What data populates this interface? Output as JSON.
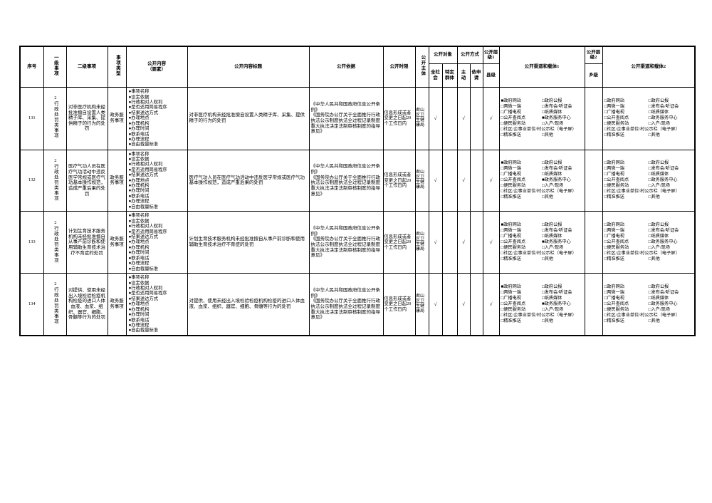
{
  "columns": [
    {
      "key": "seq",
      "label": "序号"
    },
    {
      "key": "level1",
      "label": "一级事项"
    },
    {
      "key": "level2",
      "label": "二级事项"
    },
    {
      "key": "type",
      "label": "事项类型"
    },
    {
      "key": "elements",
      "label": "公开内容（要素）"
    },
    {
      "key": "title",
      "label": "公开内容标题"
    },
    {
      "key": "basis",
      "label": "公开依据"
    },
    {
      "key": "limit",
      "label": "公开时限"
    },
    {
      "key": "subject",
      "label": "公开主体"
    },
    {
      "key": "target",
      "label": "公开对象",
      "children": [
        "全社会",
        "特定群体"
      ]
    },
    {
      "key": "method",
      "label": "公开方式",
      "children": [
        "主动",
        "依申请"
      ]
    },
    {
      "key": "level_group1",
      "label": "公开层级1",
      "children": [
        "县级"
      ]
    },
    {
      "key": "channel1",
      "label": "公开渠道和载体1"
    },
    {
      "key": "level_group2",
      "label": "公开层级2",
      "children": [
        "乡级"
      ]
    },
    {
      "key": "channel2",
      "label": "公开渠道和载体2"
    }
  ],
  "glyphs": {
    "check_mark": "√",
    "bullet": "●",
    "checkbox_checked": "■",
    "checkbox_unchecked": "□"
  },
  "channel_options": [
    "政府网站",
    "政府公报",
    "两微一端",
    "发布会/听证会",
    "广播电视",
    "纸质媒体",
    "公开查阅点",
    "政务服务中心",
    "便民服务站",
    "入户/现场",
    "社区/企事业单位/村公示栏（电子屏）",
    "精准推送",
    "其他"
  ],
  "rows": [
    {
      "seq": "131",
      "level1": "2行政处罚类事项",
      "level2": "对非医疗机构未经批准擅自设置人类精子库、采集、提供精子的行为的处罚",
      "type": "政务服务事项",
      "elements": [
        "事项名称",
        "设定依据",
        "行政相对人权利",
        "是否适用简易程序",
        "结果送达方式",
        "办理地点",
        "办理机构",
        "办理时间",
        "联系电话",
        "办理流程",
        "自由裁量标准"
      ],
      "title": "对非医疗机构未经批准擅自设置人类精子库、采集、提供精子的行为的处罚",
      "basis": [
        "《中华人民共和国政府信息公开条例》",
        "《国务院办公厅关于全面推行行政执法公示制度执法全过程记录制度重大执法决定法制审核制度的指导意见》"
      ],
      "limit": "信息形成或者变更之日起20个工作日内",
      "subject": "君山区卫生健康局",
      "checks": {
        "society": true,
        "specific": false,
        "active": true,
        "request": false,
        "county": true,
        "township": false
      },
      "channels1_checked": [
        "政府网站",
        "政务服务中心"
      ],
      "channels2_checked": []
    },
    {
      "seq": "132",
      "level1": "2行政处罚类事项",
      "level2": "医疗气功人员在医疗气功活动中违反医学常规或医疗气功基本操作规范，造成严重后果的处罚",
      "type": "政务服务事项",
      "elements": [
        "事项名称",
        "设定依据",
        "行政相对人权利",
        "是否适用简易程序",
        "结果送达方式",
        "办理地点",
        "办理机构",
        "办理时间",
        "联系电话",
        "办理流程",
        "自由裁量标准"
      ],
      "title": "医疗气功人员在医疗气功活动中违反医学常规或医疗气功基本操作规范，造成严重后果的处罚",
      "basis": [
        "《中华人民共和国政府信息公开条例》",
        "《国务院办公厅关于全面推行行政执法公示制度执法全过程记录制度重大执法决定法制审核制度的指导意见》"
      ],
      "limit": "信息形成或者变更之日起20个工作日内",
      "subject": "君山区卫生健康局",
      "checks": {
        "society": true,
        "specific": false,
        "active": true,
        "request": false,
        "county": true,
        "township": false
      },
      "channels1_checked": [
        "政府网站",
        "政务服务中心"
      ],
      "channels2_checked": []
    },
    {
      "seq": "133",
      "level1": "2行政处罚类事项",
      "level2": "计划生育技术服务机构未经批准擅自从事产前诊断和使用辅助生育技术治疗不育症的处罚",
      "type": "政务服务事项",
      "elements": [
        "事项名称",
        "设定依据",
        "行政相对人权利",
        "是否适用简易程序",
        "结果送达方式",
        "办理地点",
        "办理机构",
        "办理时间",
        "联系电话",
        "办理流程",
        "自由裁量标准"
      ],
      "title": "计划生育技术服务机构未经批准擅自从事产前诊断和使用辅助生育技术治疗不育症的处罚",
      "basis": [
        "《中华人民共和国政府信息公开条例》",
        "《国务院办公厅关于全面推行行政执法公示制度执法全过程记录制度重大执法决定法制审核制度的指导意见》"
      ],
      "limit": "信息形成或者变更之日起20个工作日内",
      "subject": "君山区卫生健康局",
      "checks": {
        "society": true,
        "specific": false,
        "active": true,
        "request": false,
        "county": true,
        "township": false
      },
      "channels1_checked": [
        "政府网站",
        "政务服务中心"
      ],
      "channels2_checked": []
    },
    {
      "seq": "134",
      "level1": "2行政处罚类事项",
      "level2": "对提供、使用未经出入境检验检疫机构检疫的进口人体血液、血浆、组织、器官、细胞、骨髓等行为的处罚",
      "type": "政务服务事项",
      "elements": [
        "事项名称",
        "设定依据",
        "行政相对人权利",
        "是否适用简易程序",
        "结果送达方式",
        "办理地点",
        "办理机构",
        "办理时间",
        "联系电话",
        "办理流程",
        "自由裁量标准"
      ],
      "title": "对提供、使用未经出入境检验检疫机构检疫的进口人体血液、血浆、组织、器官、细胞、骨髓等行为的处罚",
      "basis": [
        "《中华人民共和国政府信息公开条例》",
        "《国务院办公厅关于全面推行行政执法公示制度执法全过程记录制度重大执法决定法制审核制度的指导意见》"
      ],
      "limit": "信息形成或者变更之日起20个工作日内",
      "subject": "君山区卫生健康局",
      "checks": {
        "society": true,
        "specific": false,
        "active": true,
        "request": false,
        "county": true,
        "township": false
      },
      "channels1_checked": [
        "政府网站",
        "政务服务中心"
      ],
      "channels2_checked": []
    }
  ]
}
